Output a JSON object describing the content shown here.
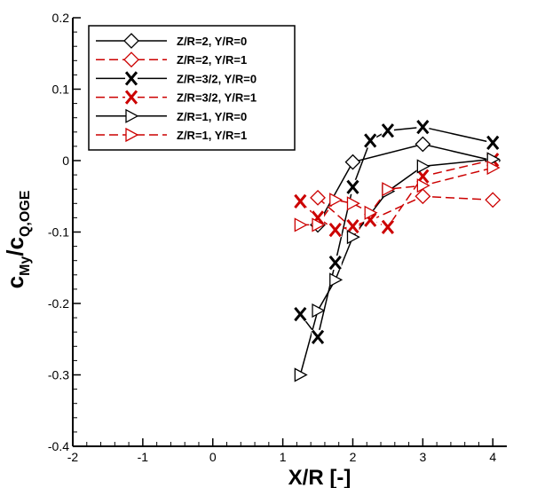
{
  "chart_data": {
    "type": "line",
    "xlim": [
      -2,
      4.2
    ],
    "ylim": [
      -0.4,
      0.2
    ],
    "x_ticks": [
      {
        "value": -2,
        "label": "-2"
      },
      {
        "value": -1,
        "label": "-1"
      },
      {
        "value": 0,
        "label": "0"
      },
      {
        "value": 1,
        "label": "1"
      },
      {
        "value": 2,
        "label": "2"
      },
      {
        "value": 3,
        "label": "3"
      },
      {
        "value": 4,
        "label": "4"
      }
    ],
    "y_ticks": [
      {
        "value": -0.4,
        "label": "-0.4"
      },
      {
        "value": -0.3,
        "label": "-0.3"
      },
      {
        "value": -0.2,
        "label": "-0.2"
      },
      {
        "value": -0.1,
        "label": "-0.1"
      },
      {
        "value": 0,
        "label": "0"
      },
      {
        "value": 0.1,
        "label": "0.1"
      },
      {
        "value": 0.2,
        "label": "0.2"
      }
    ],
    "xlabel": "X/R [-]",
    "ylabel": {
      "main": "c",
      "sub1": "My",
      "mid": "/c",
      "sub2": "Q,OGE"
    },
    "grid": false,
    "legend_position": "top-left",
    "series": [
      {
        "name": "Z/R=2, Y/R=0",
        "color": "#000000",
        "dashed": false,
        "marker": "diamond",
        "x": [
          1.5,
          2.0,
          3.0,
          4.0
        ],
        "y": [
          -0.09,
          -0.002,
          0.023,
          0.0
        ]
      },
      {
        "name": "Z/R=2, Y/R=1",
        "color": "#cc0000",
        "dashed": true,
        "marker": "diamond",
        "x": [
          1.5,
          2.0,
          3.0,
          4.0
        ],
        "y": [
          -0.052,
          -0.095,
          -0.05,
          -0.055
        ]
      },
      {
        "name": "Z/R=3/2, Y/R=0",
        "color": "#000000",
        "dashed": false,
        "marker": "x",
        "x": [
          1.25,
          1.5,
          1.75,
          2.0,
          2.25,
          2.5,
          3.0,
          4.0
        ],
        "y": [
          -0.215,
          -0.247,
          -0.143,
          -0.037,
          0.028,
          0.042,
          0.047,
          0.025
        ]
      },
      {
        "name": "Z/R=3/2, Y/R=1",
        "color": "#cc0000",
        "dashed": true,
        "marker": "x",
        "x": [
          1.25,
          1.5,
          1.75,
          2.0,
          2.25,
          2.5,
          3.0,
          4.0
        ],
        "y": [
          -0.057,
          -0.08,
          -0.097,
          -0.092,
          -0.083,
          -0.093,
          -0.022,
          0.001
        ]
      },
      {
        "name": "Z/R=1, Y/R=0",
        "color": "#000000",
        "dashed": false,
        "marker": "triangle",
        "x": [
          1.25,
          1.5,
          1.75,
          2.0,
          2.5,
          3.0,
          4.0
        ],
        "y": [
          -0.3,
          -0.21,
          -0.167,
          -0.107,
          -0.043,
          -0.008,
          0.002
        ]
      },
      {
        "name": "Z/R=1, Y/R=1",
        "color": "#cc0000",
        "dashed": true,
        "marker": "triangle",
        "x": [
          1.25,
          1.5,
          1.75,
          2.0,
          2.25,
          2.5,
          3.0,
          4.0
        ],
        "y": [
          -0.09,
          -0.09,
          -0.055,
          -0.06,
          -0.073,
          -0.04,
          -0.035,
          -0.01
        ]
      }
    ]
  }
}
